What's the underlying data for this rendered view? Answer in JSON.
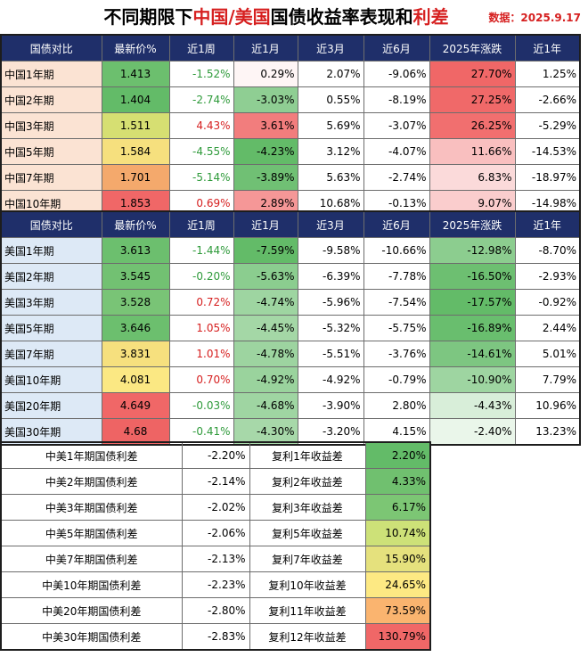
{
  "title": {
    "prefix": "不同期限下",
    "hl1": "中国/美国",
    "mid": "国债收益率表现和",
    "hl2": "利差"
  },
  "date": "数据：2025.9.17",
  "headers": [
    "国债对比",
    "最新价%",
    "近1周",
    "近1月",
    "近3月",
    "近6月",
    "2025年涨跌",
    "近1年"
  ],
  "china": [
    [
      "中国1年期",
      "1.413",
      "-1.52%",
      "0.29%",
      "2.07%",
      "-9.06%",
      "27.70%",
      "1.25%"
    ],
    [
      "中国2年期",
      "1.404",
      "-2.74%",
      "-3.03%",
      "0.55%",
      "-8.19%",
      "27.25%",
      "-2.66%"
    ],
    [
      "中国3年期",
      "1.511",
      "4.43%",
      "3.61%",
      "5.69%",
      "-3.07%",
      "26.25%",
      "-5.29%"
    ],
    [
      "中国5年期",
      "1.584",
      "-4.55%",
      "-4.23%",
      "3.12%",
      "-4.07%",
      "11.66%",
      "-14.53%"
    ],
    [
      "中国7年期",
      "1.701",
      "-5.14%",
      "-3.89%",
      "5.63%",
      "-2.74%",
      "6.83%",
      "-18.97%"
    ],
    [
      "中国10年期",
      "1.853",
      "0.69%",
      "2.89%",
      "10.68%",
      "-0.13%",
      "9.07%",
      "-14.98%"
    ]
  ],
  "us": [
    [
      "美国1年期",
      "3.613",
      "-1.44%",
      "-7.59%",
      "-9.58%",
      "-10.66%",
      "-12.98%",
      "-8.70%"
    ],
    [
      "美国2年期",
      "3.545",
      "-0.20%",
      "-5.63%",
      "-6.39%",
      "-7.78%",
      "-16.50%",
      "-2.93%"
    ],
    [
      "美国3年期",
      "3.528",
      "0.72%",
      "-4.74%",
      "-5.96%",
      "-7.54%",
      "-17.57%",
      "-0.92%"
    ],
    [
      "美国5年期",
      "3.646",
      "1.05%",
      "-4.45%",
      "-5.32%",
      "-5.75%",
      "-16.89%",
      "2.44%"
    ],
    [
      "美国7年期",
      "3.831",
      "1.01%",
      "-4.78%",
      "-5.51%",
      "-3.76%",
      "-14.61%",
      "5.01%"
    ],
    [
      "美国10年期",
      "4.081",
      "0.70%",
      "-4.92%",
      "-4.92%",
      "-0.79%",
      "-10.90%",
      "7.79%"
    ],
    [
      "美国20年期",
      "4.649",
      "-0.03%",
      "-4.68%",
      "-3.90%",
      "2.80%",
      "-4.43%",
      "10.96%"
    ],
    [
      "美国30年期",
      "4.68",
      "-0.41%",
      "-4.30%",
      "-3.20%",
      "4.15%",
      "-2.40%",
      "13.23%"
    ]
  ],
  "spreads": [
    [
      "中美1年期国债利差",
      "-2.20%",
      "复利1年收益差",
      "2.20%"
    ],
    [
      "中美2年期国债利差",
      "-2.14%",
      "复利2年收益差",
      "4.33%"
    ],
    [
      "中美3年期国债利差",
      "-2.02%",
      "复利3年收益差",
      "6.17%"
    ],
    [
      "中美5年期国债利差",
      "-2.06%",
      "复利5年收益差",
      "10.74%"
    ],
    [
      "中美7年期国债利差",
      "-2.13%",
      "复利7年收益差",
      "15.90%"
    ],
    [
      "中美10年期国债利差",
      "-2.23%",
      "复利10年收益差",
      "24.65%"
    ],
    [
      "中美20年期国债利差",
      "-2.80%",
      "复利11年收益差",
      "73.59%"
    ],
    [
      "中美30年期国债利差",
      "-2.83%",
      "复利12年收益差",
      "130.79%"
    ]
  ],
  "colors": {
    "header_bg": "#1f2f6a",
    "green_text": "#2e9a3a",
    "red_text": "#d62020",
    "china_name_bg": "#fbe3d3",
    "us_name_bg": "#dde9f6",
    "china_price_bg": [
      "#6cbf6e",
      "#63bb68",
      "#d6df72",
      "#f6e07e",
      "#f4a96c",
      "#f06767"
    ],
    "us_price_bg": [
      "#6cbf6e",
      "#72c172",
      "#79c476",
      "#6cbf6e",
      "#f6e07e",
      "#fbe883",
      "#f06767",
      "#ee6464"
    ],
    "spread_bg": [
      "#63bb68",
      "#70c06f",
      "#7cc674",
      "#cde178",
      "#e5e17d",
      "#fde983",
      "#fab46f",
      "#f06767"
    ]
  }
}
